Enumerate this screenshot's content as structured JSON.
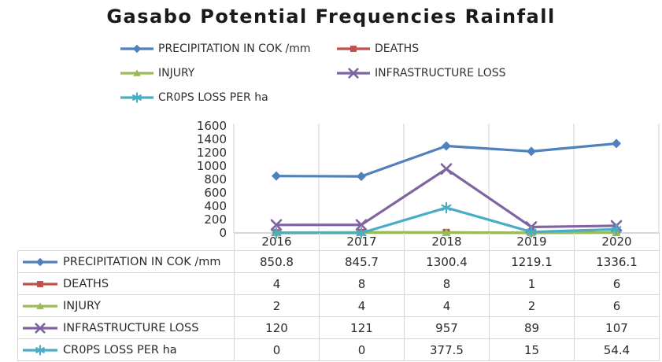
{
  "chart_data": {
    "type": "line",
    "title": "Gasabo Potential Frequencies Rainfall",
    "categories": [
      "2016",
      "2017",
      "2018",
      "2019",
      "2020"
    ],
    "series": [
      {
        "name": "PRECIPITATION IN COK /mm",
        "color": "#4F81BD",
        "marker": "diamond",
        "values": [
          850.8,
          845.7,
          1300.4,
          1219.1,
          1336.1
        ]
      },
      {
        "name": "DEATHS",
        "color": "#C0504D",
        "marker": "square",
        "values": [
          4,
          8,
          8,
          1,
          6
        ]
      },
      {
        "name": "INJURY",
        "color": "#9BBB59",
        "marker": "triangle",
        "values": [
          2,
          4,
          4,
          2,
          6
        ]
      },
      {
        "name": "INFRASTRUCTURE LOSS",
        "color": "#8064A2",
        "marker": "x",
        "values": [
          120,
          121,
          957,
          89,
          107
        ]
      },
      {
        "name": "CR0PS LOSS PER ha",
        "color": "#4BACC6",
        "marker": "asterisk",
        "values": [
          0,
          0,
          377.5,
          15,
          54.4
        ]
      }
    ],
    "ylim": [
      0,
      1600
    ],
    "y_ticks": [
      1600,
      1400,
      1200,
      1000,
      800,
      600,
      400,
      200,
      0
    ],
    "grid": "vertical-only",
    "legend_position": "top",
    "data_table_attached": true,
    "gridline_color": "#d9d9d9",
    "axis_color": "#bfbfbf",
    "table_border_color": "#d6d6d6"
  }
}
